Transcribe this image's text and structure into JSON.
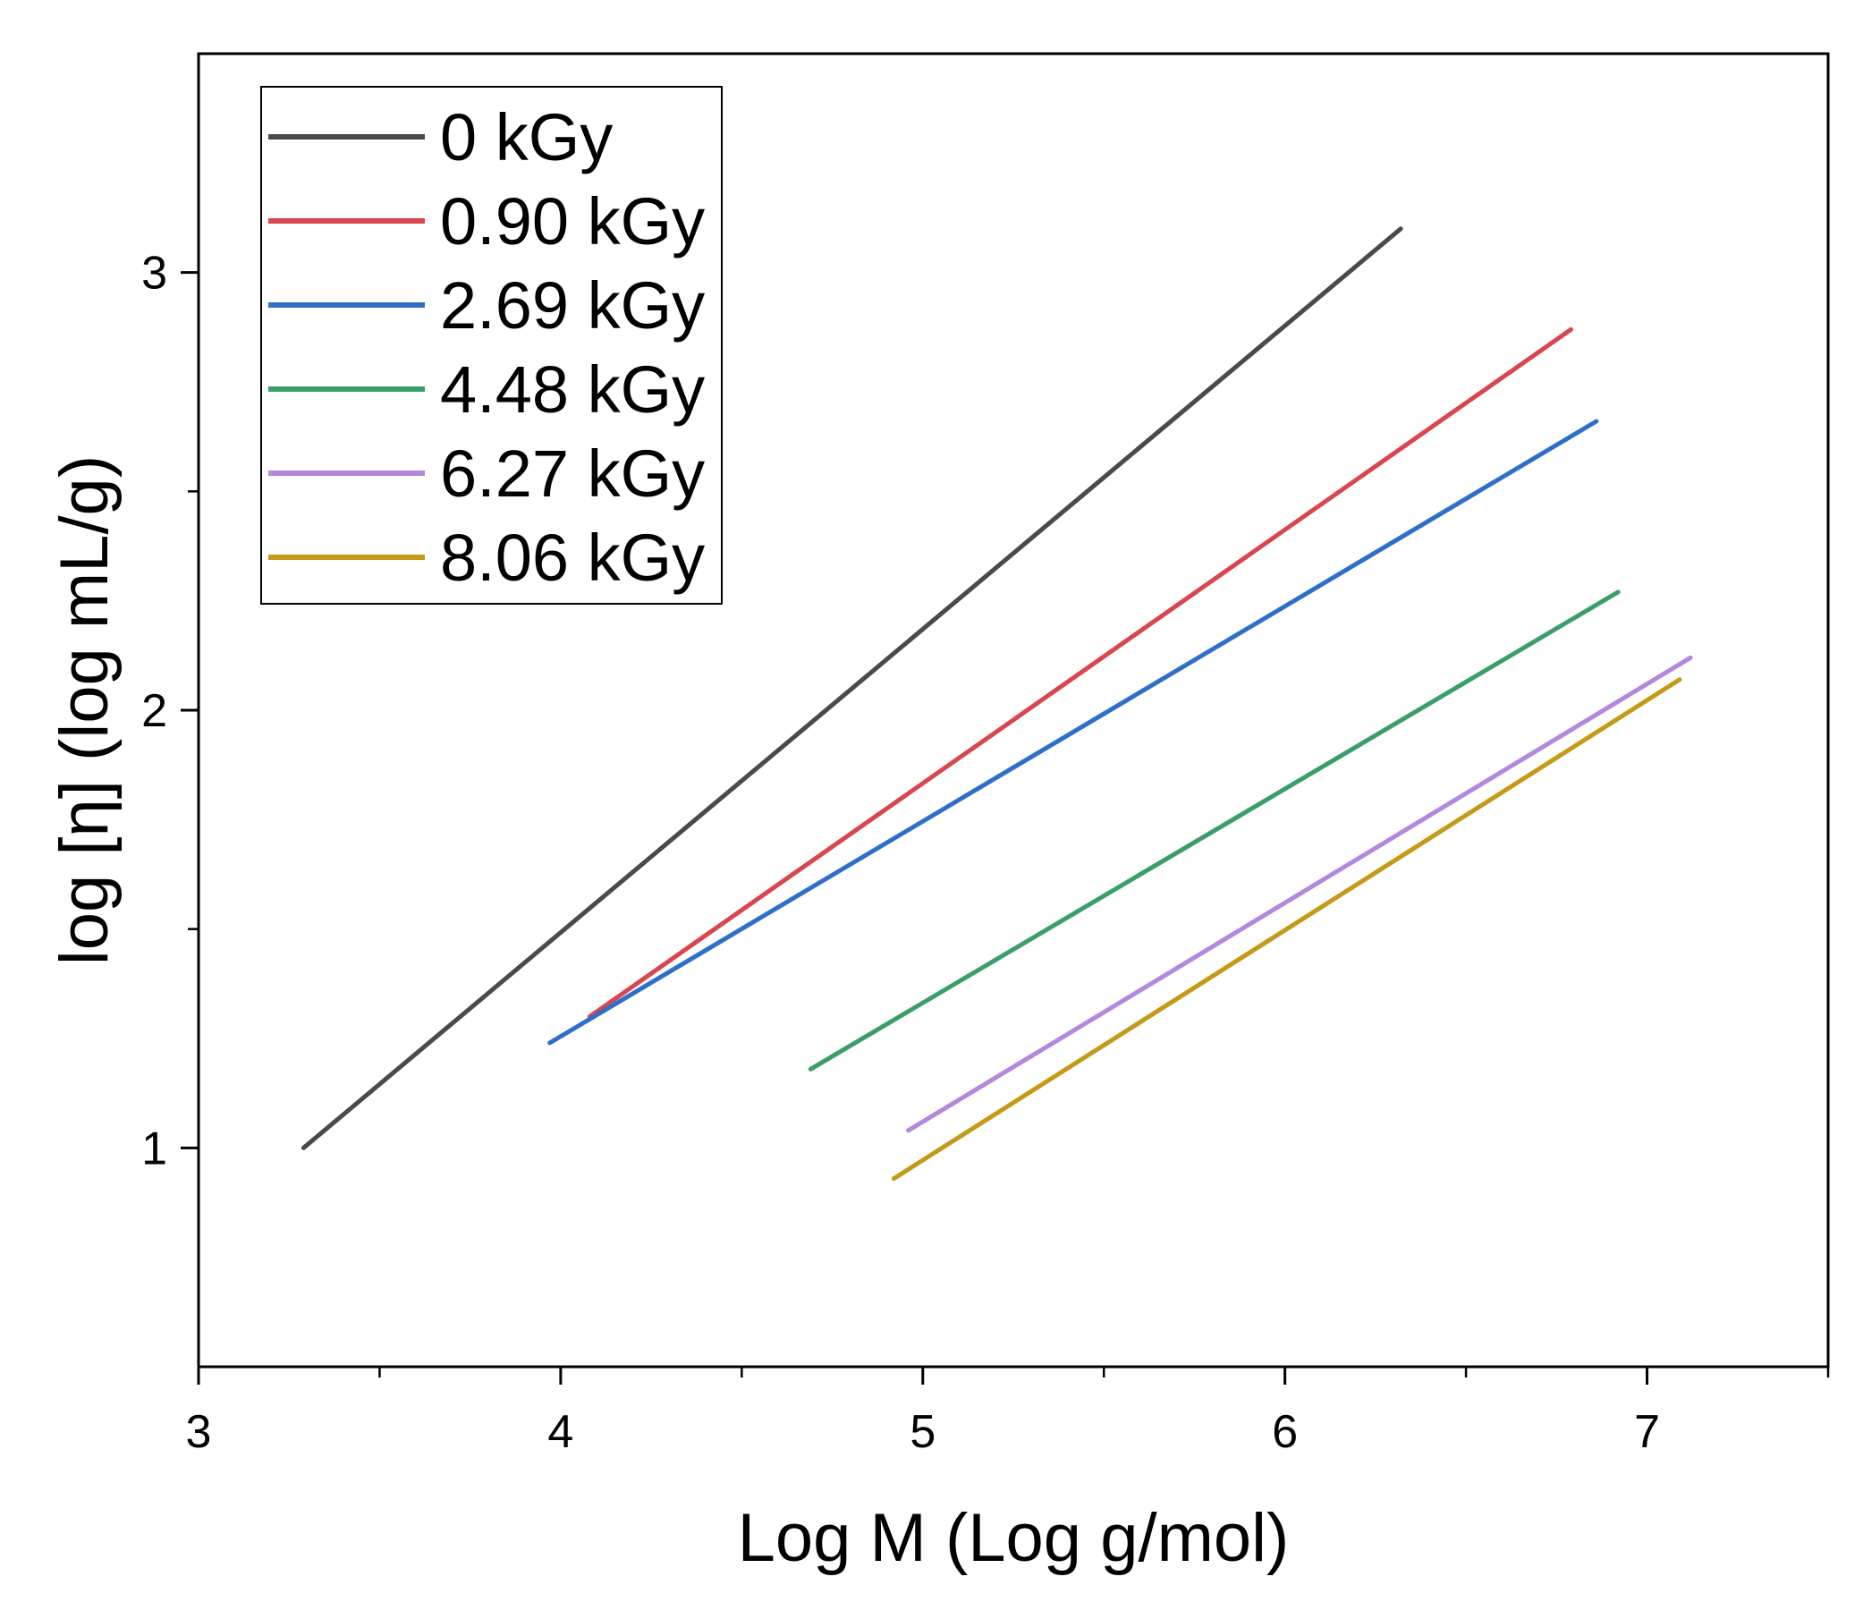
{
  "chart_data": {
    "type": "line",
    "title": "",
    "xlabel": "Log M (Log g/mol)",
    "ylabel": "log [η] (log mL/g)",
    "xlim": [
      3,
      7.5
    ],
    "ylim": [
      0.5,
      3.5
    ],
    "xticks": [
      3,
      4,
      5,
      6,
      7
    ],
    "yticks": [
      1,
      2,
      3
    ],
    "x_minor_step": 0.5,
    "y_minor_step": 0.5,
    "grid": false,
    "legend_position": "top-left",
    "series": [
      {
        "name": "0 kGy",
        "color": "#4a4a4a",
        "x": [
          3.29,
          6.32
        ],
        "y": [
          1.0,
          3.1
        ]
      },
      {
        "name": "0.90 kGy",
        "color": "#d9464d",
        "x": [
          4.08,
          6.79
        ],
        "y": [
          1.3,
          2.87
        ]
      },
      {
        "name": "2.69 kGy",
        "color": "#2f6fc9",
        "x": [
          3.97,
          6.86
        ],
        "y": [
          1.24,
          2.66
        ]
      },
      {
        "name": "4.48 kGy",
        "color": "#3a9e6a",
        "x": [
          4.69,
          6.92
        ],
        "y": [
          1.18,
          2.27
        ]
      },
      {
        "name": "6.27 kGy",
        "color": "#b388dd",
        "x": [
          4.96,
          7.12
        ],
        "y": [
          1.04,
          2.12
        ]
      },
      {
        "name": "8.06 kGy",
        "color": "#c49a16",
        "x": [
          4.92,
          7.09
        ],
        "y": [
          0.93,
          2.07
        ]
      }
    ]
  }
}
